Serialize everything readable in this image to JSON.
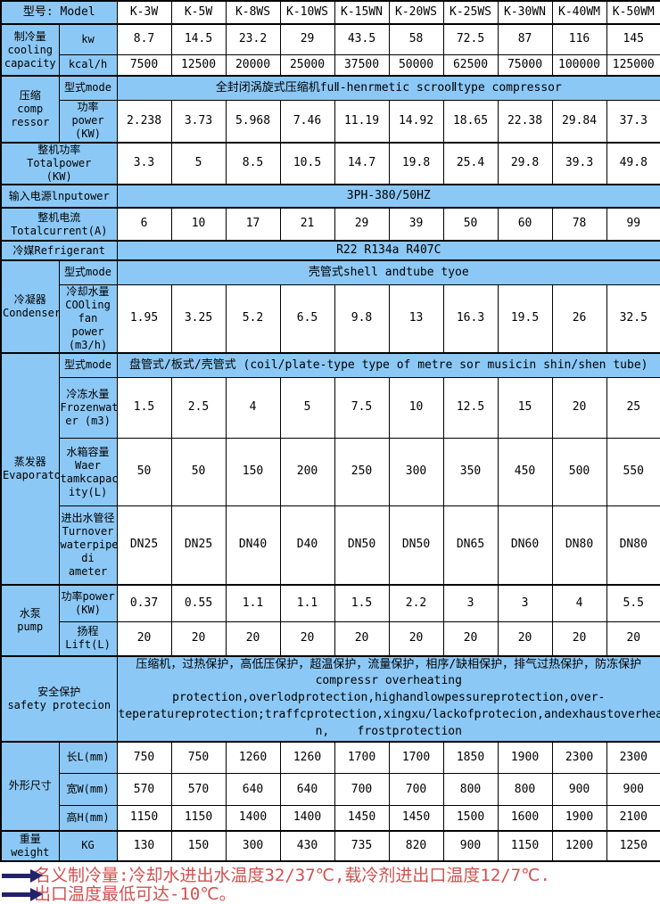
{
  "colors": {
    "cell_blue": "#8CC8F5",
    "note_red": "#D25050",
    "arrow_navy": "#232369",
    "border": "#000000"
  },
  "header": {
    "label": "型号: Model",
    "models": [
      "K-3W",
      "K-5W",
      "K-8WS",
      "K-10WS",
      "K-15WN",
      "K-20WS",
      "K-25WS",
      "K-30WN",
      "K-40WM",
      "K-50WM"
    ]
  },
  "cooling": {
    "label": "制冷量\ncooling\ncapacity",
    "kw_label": "kw",
    "kw": [
      "8.7",
      "14.5",
      "23.2",
      "29",
      "43.5",
      "58",
      "72.5",
      "87",
      "116",
      "145"
    ],
    "kcal_label": "kcal/h",
    "kcal": [
      "7500",
      "12500",
      "20000",
      "25000",
      "37500",
      "50000",
      "62500",
      "75000",
      "100000",
      "125000"
    ]
  },
  "compressor": {
    "label": "压缩\ncomp\nressor",
    "mode_label": "型式mode",
    "mode": "全封闭涡旋式压缩机fuⅡ-henrmetic scrooⅡtype compressor",
    "power_label": "功率\npower\n(KW)",
    "power": [
      "2.238",
      "3.73",
      "5.968",
      "7.46",
      "11.19",
      "14.92",
      "18.65",
      "22.38",
      "29.84",
      "37.3"
    ]
  },
  "total_power": {
    "label": "整机功率\nTotalpower\n(KW)",
    "values": [
      "3.3",
      "5",
      "8.5",
      "10.5",
      "14.7",
      "19.8",
      "25.4",
      "29.8",
      "39.3",
      "49.8"
    ]
  },
  "input_power": {
    "label": "输入电源lnputower",
    "value": "3PH-380/50HZ"
  },
  "total_current": {
    "label": "整机电流\nTotalcurrent(A)",
    "values": [
      "6",
      "10",
      "17",
      "21",
      "29",
      "39",
      "50",
      "60",
      "78",
      "99"
    ]
  },
  "refrigerant": {
    "label": "冷媒Refrigerant",
    "value": "R22 R134a R407C"
  },
  "condenser": {
    "label": "冷凝器\nCondenser",
    "mode_label": "型式mode",
    "mode": "壳管式shell andtube tyoe",
    "water_label": "冷却水量\nCOOling\nfan power\n(m3/h)",
    "water": [
      "1.95",
      "3.25",
      "5.2",
      "6.5",
      "9.8",
      "13",
      "16.3",
      "19.5",
      "26",
      "32.5"
    ]
  },
  "evaporator": {
    "label": "蒸发器\nEvaporator",
    "mode_label": "型式mode",
    "mode": "盘管式/板式/壳管式 (coil/plate-type type of metre sor musicin shin/shen tube)",
    "frozen_label": "冷冻水量\nFrozenwat\ner (m3)",
    "frozen": [
      "1.5",
      "2.5",
      "4",
      "5",
      "7.5",
      "10",
      "12.5",
      "15",
      "20",
      "25"
    ],
    "tank_label": "水箱容量\nWaer\ntamkcapac\nity(L)",
    "tank": [
      "50",
      "50",
      "150",
      "200",
      "250",
      "300",
      "350",
      "450",
      "500",
      "550"
    ],
    "pipe_label": "进出水管径\nTurnover\nwaterpipe\ndi ameter",
    "pipe": [
      "DN25",
      "DN25",
      "DN40",
      "D40",
      "DN50",
      "DN50",
      "DN65",
      "DN60",
      "DN80",
      "DN80"
    ]
  },
  "pump": {
    "label": "水泵\npump",
    "power_label": "功率power\n(KW)",
    "power": [
      "0.37",
      "0.55",
      "1.1",
      "1.1",
      "1.5",
      "2.2",
      "3",
      "3",
      "4",
      "5.5"
    ],
    "lift_label": "扬程\nLift(L)",
    "lift": [
      "20",
      "20",
      "20",
      "20",
      "20",
      "20",
      "20",
      "20",
      "20",
      "20"
    ]
  },
  "safety": {
    "label": "安全保护\nsafety protecion",
    "text": "压缩机，过热保护，高低压保护，超温保护，流量保护，相序/缺相保护，排气过热保护，防冻保护\ncompressr overheating protection,overlodprotection,highandlowpessureprotection,over-\nteperatureprotection;traffcprotection,xingxu/lackofprotecion,andexhaustoverheatingproteio\nn,    frostprotection"
  },
  "dimensions": {
    "label": "外形尺寸",
    "length_label": "长L(mm)",
    "length": [
      "750",
      "750",
      "1260",
      "1260",
      "1700",
      "1700",
      "1850",
      "1900",
      "2300",
      "2300"
    ],
    "width_label": "宽W(mm)",
    "width": [
      "570",
      "570",
      "640",
      "640",
      "700",
      "700",
      "800",
      "800",
      "900",
      "900"
    ],
    "height_label": "高H(mm)",
    "height": [
      "1150",
      "1150",
      "1400",
      "1400",
      "1450",
      "1450",
      "1500",
      "1600",
      "1900",
      "2100"
    ]
  },
  "weight": {
    "label": "重量\nweight",
    "unit_label": "KG",
    "values": [
      "130",
      "150",
      "300",
      "430",
      "735",
      "820",
      "900",
      "1150",
      "1200",
      "1250"
    ]
  },
  "notes": {
    "lines": [
      "名义制冷量:冷却水进出水温度32/37℃,载冷剂进出口温度12/7℃.",
      "出口温度最低可达-10℃。"
    ]
  }
}
